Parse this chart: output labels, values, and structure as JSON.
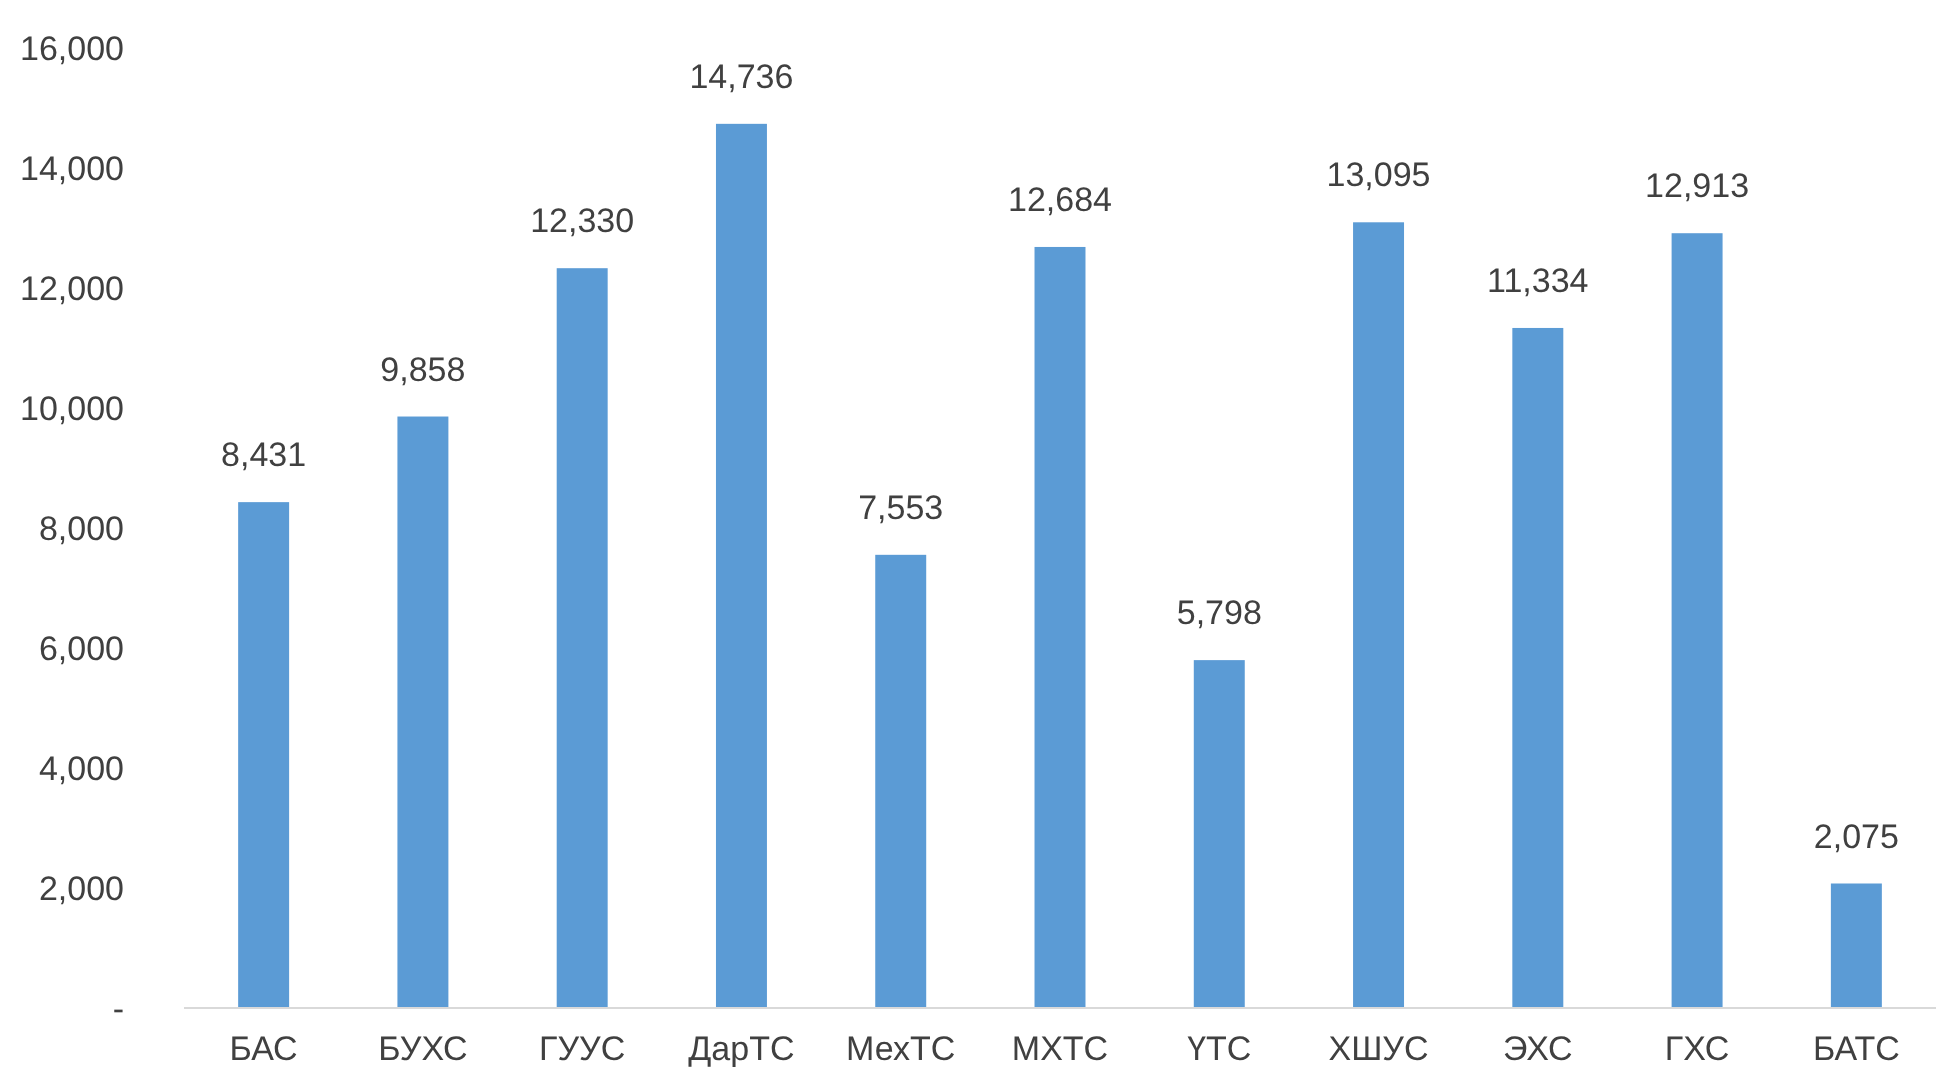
{
  "chart_data": {
    "type": "bar",
    "categories": [
      "БАС",
      "БУХС",
      "ГУУС",
      "ДарТС",
      "МехТС",
      "МХТС",
      "ҮТС",
      "ХШУС",
      "ЭХС",
      "ГХС",
      "БАТС"
    ],
    "values": [
      8431,
      9858,
      12330,
      14736,
      7553,
      12684,
      5798,
      13095,
      11334,
      12913,
      2075
    ],
    "value_labels": [
      "8,431",
      "9,858",
      "12,330",
      "14,736",
      "7,553",
      "12,684",
      "5,798",
      "13,095",
      "11,334",
      "12,913",
      "2,075"
    ],
    "color": "#5b9bd5",
    "ylim": [
      0,
      16000
    ],
    "yticks": [
      {
        "value": 0,
        "label": "-"
      },
      {
        "value": 2000,
        "label": "2,000"
      },
      {
        "value": 4000,
        "label": "4,000"
      },
      {
        "value": 6000,
        "label": "6,000"
      },
      {
        "value": 8000,
        "label": "8,000"
      },
      {
        "value": 10000,
        "label": "10,000"
      },
      {
        "value": 12000,
        "label": "12,000"
      },
      {
        "value": 14000,
        "label": "14,000"
      },
      {
        "value": 16000,
        "label": "16,000"
      }
    ],
    "grid": false
  }
}
